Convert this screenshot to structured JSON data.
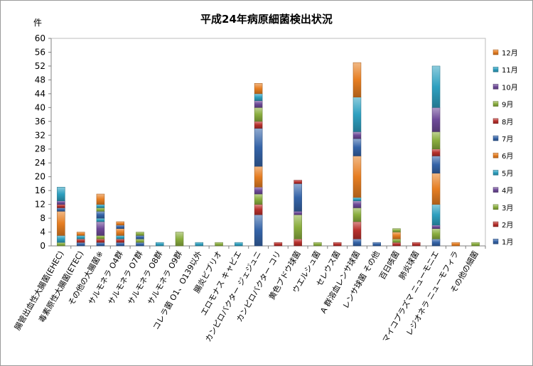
{
  "chart_data": {
    "type": "bar",
    "stacked": true,
    "title": "平成24年病原細菌検出状況",
    "ylabel": "件",
    "ylim": [
      0,
      60
    ],
    "yticks": [
      0,
      4,
      8,
      12,
      16,
      20,
      24,
      28,
      32,
      36,
      40,
      44,
      48,
      52,
      56,
      60
    ],
    "legend_position": "right",
    "categories": [
      "腸管出血性大腸菌(EHEC)",
      "毒素原性大腸菌(ETEC)",
      "その他の大腸菌※",
      "サルモネラ O4群",
      "サルモネラ O7群",
      "サルモネラ O8群",
      "サルモネラ O9群",
      "コレラ菌 O1、O139以外",
      "腸炎ビブリオ",
      "エロモナス キャビエ",
      "カンピロバクター ジェジュニ",
      "カンピロバクター コリ",
      "黄色ブドウ球菌",
      "ウエルシュ菌",
      "セレウス菌",
      "A 群溶血レンサ球菌",
      "レンサ球菌 その他",
      "百日咳菌",
      "肺炎球菌",
      "マイコプラズマ ニューモニエ",
      "レジオネラ ニューモフィラ",
      "その他の細菌"
    ],
    "series": [
      {
        "name": "1月",
        "color": "#3564a8",
        "values": [
          0,
          1,
          1,
          1,
          1,
          0,
          0,
          0,
          0,
          0,
          9,
          0,
          0,
          0,
          0,
          2,
          1,
          0,
          0,
          2,
          0,
          0
        ]
      },
      {
        "name": "2月",
        "color": "#b8302c",
        "values": [
          0,
          1,
          1,
          1,
          0,
          0,
          0,
          0,
          0,
          0,
          3,
          1,
          2,
          0,
          1,
          5,
          0,
          1,
          1,
          0,
          0,
          0
        ]
      },
      {
        "name": "3月",
        "color": "#8aae3e",
        "values": [
          1,
          0,
          1,
          0,
          1,
          0,
          4,
          0,
          1,
          0,
          3,
          0,
          7,
          1,
          0,
          4,
          0,
          1,
          0,
          3,
          0,
          1
        ]
      },
      {
        "name": "4月",
        "color": "#6e4a98",
        "values": [
          0,
          0,
          4,
          0,
          0,
          0,
          0,
          0,
          0,
          0,
          2,
          0,
          1,
          0,
          0,
          2,
          0,
          0,
          0,
          1,
          0,
          0
        ]
      },
      {
        "name": "5月",
        "color": "#2ea0c0",
        "values": [
          2,
          1,
          1,
          1,
          0,
          1,
          0,
          1,
          0,
          1,
          0,
          0,
          0,
          0,
          0,
          1,
          0,
          0,
          0,
          6,
          0,
          0
        ]
      },
      {
        "name": "6月",
        "color": "#e67e22",
        "values": [
          7,
          1,
          0,
          2,
          0,
          0,
          0,
          0,
          0,
          0,
          6,
          0,
          0,
          0,
          0,
          12,
          0,
          2,
          0,
          9,
          1,
          0
        ]
      },
      {
        "name": "7月",
        "color": "#3564a8",
        "values": [
          1,
          0,
          2,
          1,
          1,
          0,
          0,
          0,
          0,
          0,
          11,
          0,
          8,
          0,
          0,
          5,
          0,
          0,
          0,
          5,
          0,
          0
        ]
      },
      {
        "name": "8月",
        "color": "#b8302c",
        "values": [
          1,
          0,
          0,
          0,
          0,
          0,
          0,
          0,
          0,
          0,
          2,
          0,
          1,
          0,
          0,
          0,
          0,
          0,
          0,
          2,
          0,
          0
        ]
      },
      {
        "name": "9月",
        "color": "#8aae3e",
        "values": [
          0,
          0,
          1,
          0,
          1,
          0,
          0,
          0,
          0,
          0,
          4,
          0,
          0,
          0,
          0,
          0,
          0,
          1,
          0,
          5,
          0,
          0
        ]
      },
      {
        "name": "10月",
        "color": "#6e4a98",
        "values": [
          1,
          0,
          0,
          0,
          0,
          0,
          0,
          0,
          0,
          0,
          2,
          0,
          0,
          0,
          0,
          2,
          0,
          0,
          0,
          7,
          0,
          0
        ]
      },
      {
        "name": "11月",
        "color": "#2ea0c0",
        "values": [
          4,
          0,
          1,
          0,
          0,
          0,
          0,
          0,
          0,
          0,
          2,
          0,
          0,
          0,
          0,
          10,
          0,
          0,
          0,
          12,
          0,
          0
        ]
      },
      {
        "name": "12月",
        "color": "#e67e22",
        "values": [
          0,
          0,
          3,
          1,
          0,
          0,
          0,
          0,
          0,
          0,
          3,
          0,
          0,
          0,
          0,
          10,
          0,
          0,
          0,
          0,
          0,
          0
        ]
      }
    ]
  }
}
